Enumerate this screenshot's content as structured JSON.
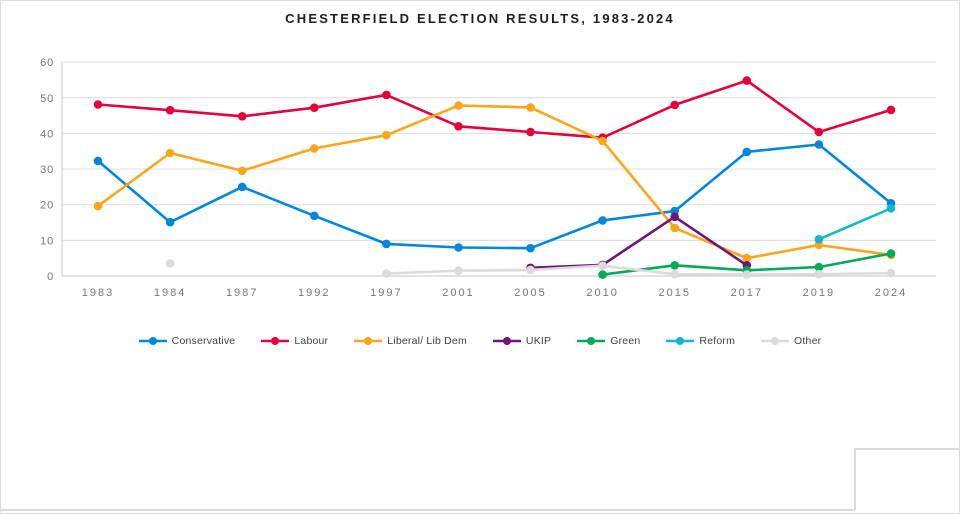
{
  "chart_data": {
    "type": "line",
    "title": "CHESTERFIELD ELECTION RESULTS, 1983-2024",
    "x_categories": [
      "1983",
      "1984",
      "1987",
      "1992",
      "1997",
      "2001",
      "2005",
      "2010",
      "2015",
      "2017",
      "2019",
      "2024"
    ],
    "y_axis": {
      "min": 0,
      "max": 60,
      "step": 10,
      "tick_labels": [
        "0",
        "10",
        "20",
        "30",
        "40",
        "50",
        "60"
      ]
    },
    "grid": true,
    "legend_position": "bottom",
    "series": [
      {
        "name": "Conservative",
        "color": "#0087DC",
        "values": [
          32.3,
          15.1,
          25.0,
          16.9,
          9.0,
          8.0,
          7.8,
          15.6,
          18.2,
          34.8,
          36.9,
          20.4
        ]
      },
      {
        "name": "Labour",
        "color": "#E4003B",
        "values": [
          48.1,
          46.5,
          44.8,
          47.2,
          50.8,
          42.0,
          40.4,
          38.8,
          48.0,
          54.8,
          40.4,
          46.6
        ]
      },
      {
        "name": "Liberal/ Lib Dem",
        "color": "#FAA61A",
        "values": [
          19.6,
          34.5,
          29.5,
          35.8,
          39.5,
          47.8,
          47.3,
          37.9,
          13.5,
          5.0,
          8.7,
          5.9
        ]
      },
      {
        "name": "UKIP",
        "color": "#70147A",
        "values": [
          null,
          null,
          null,
          null,
          null,
          null,
          2.3,
          3.1,
          16.6,
          3.0,
          null,
          null
        ]
      },
      {
        "name": "Green",
        "color": "#02A95B",
        "values": [
          null,
          null,
          null,
          null,
          null,
          null,
          null,
          0.4,
          3.0,
          1.6,
          2.5,
          6.3
        ]
      },
      {
        "name": "Reform",
        "color": "#12B6CF",
        "values": [
          null,
          null,
          null,
          null,
          null,
          null,
          null,
          null,
          null,
          null,
          10.3,
          19.0
        ]
      },
      {
        "name": "Other",
        "color": "#DBDBDB",
        "values": [
          null,
          3.5,
          null,
          null,
          0.7,
          1.5,
          1.7,
          2.9,
          0.5,
          0.4,
          0.5,
          0.8
        ]
      }
    ],
    "style": {
      "grid_color": "#DCDCDC",
      "axis_line_color": "#C6C6C6",
      "tick_label_color": "#757575",
      "title_color": "#1F1F1F",
      "legend_text_color": "#3F3F3F"
    }
  }
}
